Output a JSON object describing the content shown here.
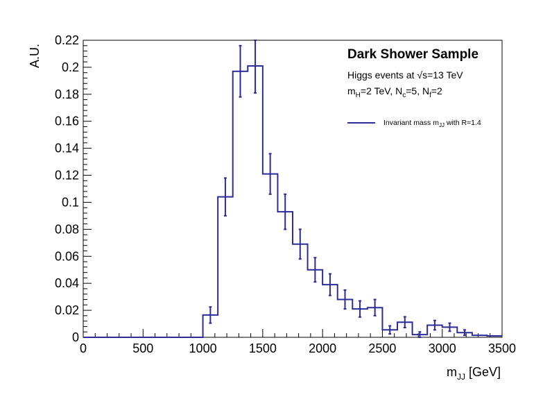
{
  "chart_data": {
    "type": "histogram",
    "title": "Dark Shower Sample",
    "info_lines": [
      {
        "pre": "Higgs events at ",
        "sqrt": "s",
        "post": "=13 TeV"
      },
      {
        "parts": [
          {
            "t": "m"
          },
          {
            "sub": "H"
          },
          {
            "t": "=2 TeV, N"
          },
          {
            "sub": "c"
          },
          {
            "t": "=5, N"
          },
          {
            "sub": "f"
          },
          {
            "t": "=2"
          }
        ]
      }
    ],
    "xlabel": {
      "main": "m",
      "sub": "JJ",
      "unit": " [GeV]"
    },
    "ylabel": "A.U.",
    "xlim": [
      0,
      3500
    ],
    "ylim": [
      0,
      0.22
    ],
    "xticks": [
      0,
      500,
      1000,
      1500,
      2000,
      2500,
      3000,
      3500
    ],
    "xtick_labels": [
      "0",
      "500",
      "1000",
      "1500",
      "2000",
      "2500",
      "3000",
      "3500"
    ],
    "yticks": [
      0,
      0.02,
      0.04,
      0.06,
      0.08,
      0.1,
      0.12,
      0.14,
      0.16,
      0.18,
      0.2,
      0.22
    ],
    "ytick_labels": [
      "0",
      "0.02",
      "0.04",
      "0.06",
      "0.08",
      "0.1",
      "0.12",
      "0.14",
      "0.16",
      "0.18",
      "0.2",
      "0.22"
    ],
    "bin_width": 125,
    "bin_edges_start": 0,
    "values": [
      0,
      0,
      0,
      0,
      0,
      0,
      0,
      0,
      0.0165,
      0.104,
      0.197,
      0.201,
      0.121,
      0.093,
      0.069,
      0.05,
      0.039,
      0.028,
      0.021,
      0.022,
      0.0055,
      0.0112,
      0.002,
      0.009,
      0.0075,
      0.0035,
      0.0015,
      0.001
    ],
    "errors": [
      0,
      0,
      0,
      0,
      0,
      0,
      0,
      0,
      0.006,
      0.014,
      0.019,
      0.02,
      0.015,
      0.013,
      0.011,
      0.009,
      0.008,
      0.007,
      0.006,
      0.006,
      0.003,
      0.004,
      0.002,
      0.0035,
      0.003,
      0.002,
      0,
      0
    ],
    "color": "#2b2b9a",
    "legend": [
      {
        "label_main": "Invariant mass m",
        "label_sub": "JJ",
        "label_post": " with R=1.4",
        "color": "#2b2b9a"
      }
    ],
    "legend_position": "top-right",
    "grid": false
  }
}
